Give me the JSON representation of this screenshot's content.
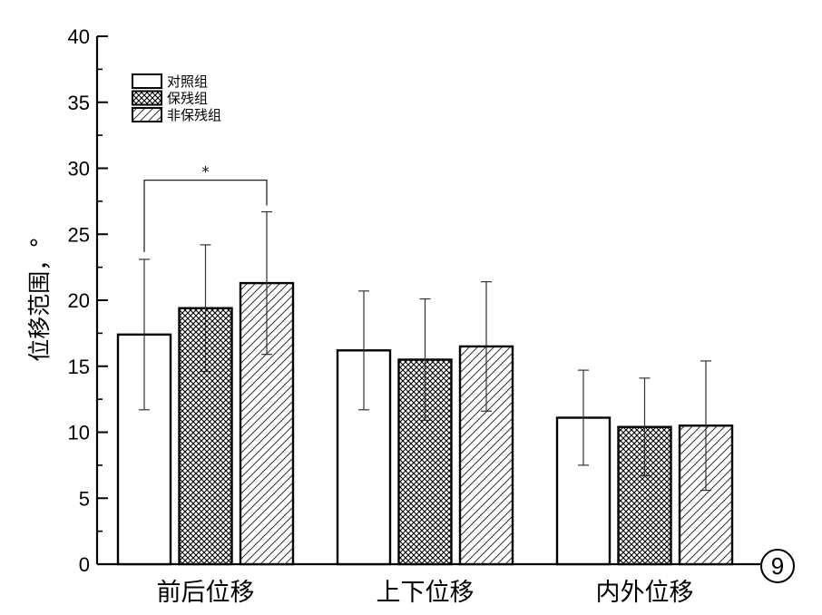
{
  "chart_data": {
    "type": "bar",
    "ylabel": "位移范围，°",
    "ylim": [
      0,
      40
    ],
    "yticks": [
      0,
      5,
      10,
      15,
      20,
      25,
      30,
      35,
      40
    ],
    "categories": [
      "前后位移",
      "上下位移",
      "内外位移"
    ],
    "series": [
      {
        "name": "对照组",
        "values": [
          17.4,
          16.2,
          11.1
        ],
        "errors": [
          5.7,
          4.5,
          3.6
        ],
        "pattern": "empty"
      },
      {
        "name": "保残组",
        "values": [
          19.4,
          15.5,
          10.4
        ],
        "errors": [
          4.8,
          4.6,
          3.7
        ],
        "pattern": "crosshatch"
      },
      {
        "name": "非保残组",
        "values": [
          21.3,
          16.5,
          10.5
        ],
        "errors": [
          5.4,
          4.9,
          4.9
        ],
        "pattern": "diagonal"
      }
    ],
    "significance": [
      {
        "category_index": 0,
        "from_series": 0,
        "to_series": 2,
        "label": "*"
      }
    ],
    "legend_position": "top-left",
    "grid": false
  },
  "panel_label": "9",
  "colors": {
    "bar_stroke": "#000000",
    "bar_fill": "#ffffff",
    "axis": "#000000",
    "error_bar": "#333333"
  }
}
